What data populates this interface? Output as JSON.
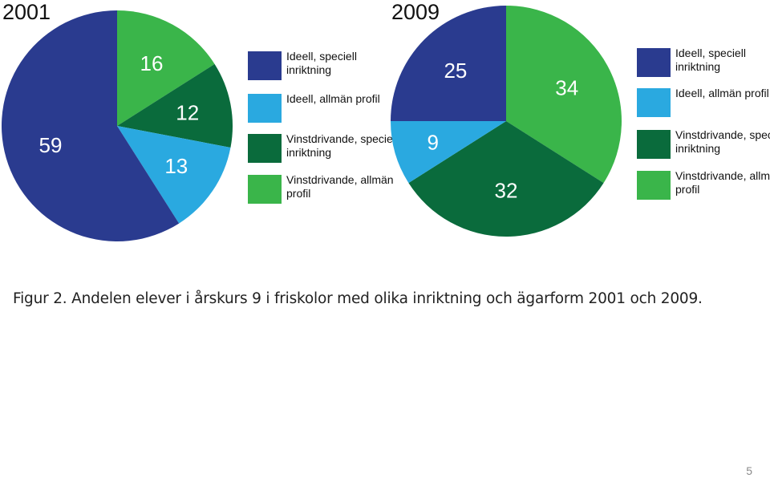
{
  "colors": {
    "ideell_speciell": "#2a3b8f",
    "ideell_allman": "#2aa9e0",
    "vinst_speciell": "#0a6b3c",
    "vinst_allman": "#3ab54a"
  },
  "legend": [
    {
      "label": "Ideell, speciell inriktning",
      "color": "#2a3b8f"
    },
    {
      "label": "Ideell, allmän profil",
      "color": "#2aa9e0"
    },
    {
      "label": "Vinstdrivande, speciell inriktning",
      "color": "#0a6b3c"
    },
    {
      "label": "Vinstdrivande, allmän profil",
      "color": "#3ab54a"
    }
  ],
  "chart_data": [
    {
      "type": "pie",
      "title": "2001",
      "categories": [
        "Ideell, speciell inriktning",
        "Ideell, allmän profil",
        "Vinstdrivande, speciell inriktning",
        "Vinstdrivande, allmän profil"
      ],
      "values": [
        59,
        13,
        12,
        16
      ],
      "legend_position": "right"
    },
    {
      "type": "pie",
      "title": "2009",
      "categories": [
        "Ideell, speciell inriktning",
        "Ideell, allmän profil",
        "Vinstdrivande, speciell inriktning",
        "Vinstdrivande, allmän profil"
      ],
      "values": [
        25,
        9,
        32,
        34
      ],
      "legend_position": "right"
    }
  ],
  "caption": "Figur 2. Andelen elever i årskurs 9 i friskolor med olika inriktning och ägarform 2001 och 2009.",
  "page_number": "5"
}
